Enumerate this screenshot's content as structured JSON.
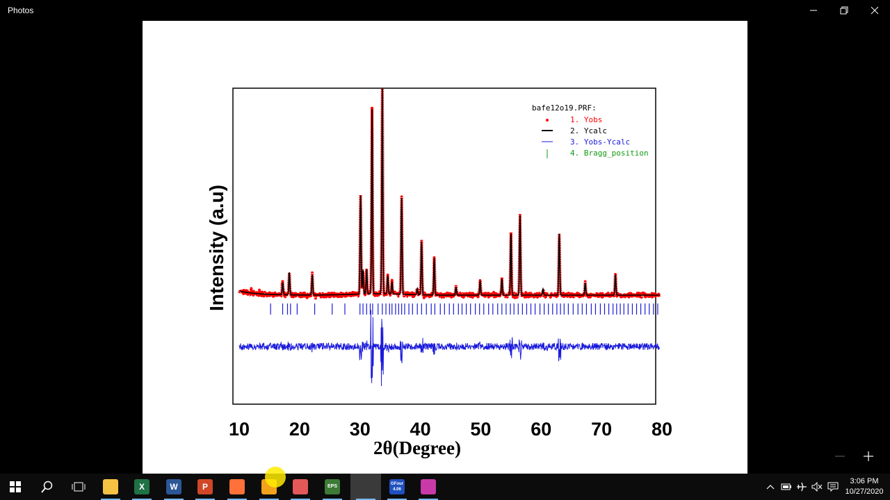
{
  "window": {
    "title": "Photos"
  },
  "chart_data": {
    "type": "line",
    "file_label": "bafe12o19.PRF:",
    "xlabel": "2θ(Degree)",
    "ylabel": "Intensity (a.u)",
    "xlim": [
      10,
      80
    ],
    "xticks": [
      "10",
      "20",
      "30",
      "40",
      "50",
      "60",
      "70",
      "80"
    ],
    "legend": [
      "1. Yobs",
      "2. Ycalc",
      "3. Yobs-Ycalc",
      "4. Bragg_position"
    ],
    "legend_placement": "top-right",
    "colors": {
      "yobs": "#ff0000",
      "ycalc": "#000000",
      "diff": "#1a1adc",
      "bragg": "#1a1adc",
      "legend_bragg": "#119911"
    },
    "peaks": [
      {
        "x": 17.2,
        "h": 0.06
      },
      {
        "x": 18.3,
        "h": 0.11
      },
      {
        "x": 22.1,
        "h": 0.1
      },
      {
        "x": 30.1,
        "h": 0.48
      },
      {
        "x": 30.5,
        "h": 0.12
      },
      {
        "x": 31.1,
        "h": 0.12
      },
      {
        "x": 32.0,
        "h": 0.9
      },
      {
        "x": 33.7,
        "h": 1.0
      },
      {
        "x": 34.6,
        "h": 0.09
      },
      {
        "x": 35.3,
        "h": 0.06
      },
      {
        "x": 36.9,
        "h": 0.47
      },
      {
        "x": 39.5,
        "h": 0.03
      },
      {
        "x": 40.2,
        "h": 0.26
      },
      {
        "x": 42.3,
        "h": 0.18
      },
      {
        "x": 45.9,
        "h": 0.04
      },
      {
        "x": 49.9,
        "h": 0.07
      },
      {
        "x": 53.5,
        "h": 0.08
      },
      {
        "x": 55.0,
        "h": 0.3
      },
      {
        "x": 56.5,
        "h": 0.39
      },
      {
        "x": 60.3,
        "h": 0.03
      },
      {
        "x": 63.0,
        "h": 0.3
      },
      {
        "x": 67.3,
        "h": 0.06
      },
      {
        "x": 72.3,
        "h": 0.1
      }
    ],
    "bragg_positions": [
      15.2,
      17.2,
      18.0,
      18.5,
      19.6,
      22.5,
      25.4,
      27.5,
      30.0,
      30.5,
      31.1,
      31.7,
      32.1,
      33.0,
      33.7,
      34.3,
      34.9,
      35.3,
      35.9,
      36.4,
      36.9,
      37.4,
      38.1,
      38.7,
      39.5,
      40.2,
      41.0,
      41.8,
      42.4,
      43.3,
      44.0,
      44.8,
      45.5,
      46.3,
      46.9,
      47.6,
      48.3,
      49.1,
      49.8,
      50.5,
      51.3,
      52.0,
      52.8,
      53.5,
      54.2,
      54.9,
      55.5,
      56.2,
      56.9,
      57.6,
      58.3,
      59.0,
      59.8,
      60.5,
      61.2,
      61.9,
      62.6,
      63.2,
      63.8,
      64.5,
      65.3,
      66.1,
      66.8,
      67.5,
      68.3,
      69.0,
      69.8,
      70.5,
      71.2,
      71.9,
      72.5,
      73.1,
      73.7,
      74.4,
      75.1,
      75.8,
      76.5,
      77.2,
      77.9,
      78.6,
      79.3
    ]
  },
  "taskbar": {
    "apps": [
      {
        "name": "file-explorer",
        "label": "",
        "color": "#f6c244"
      },
      {
        "name": "excel",
        "label": "X",
        "color": "#1f7244"
      },
      {
        "name": "word",
        "label": "W",
        "color": "#2b5797"
      },
      {
        "name": "powerpoint",
        "label": "P",
        "color": "#d04727"
      },
      {
        "name": "firefox",
        "label": "",
        "color": "#ff7139"
      },
      {
        "name": "orange-app",
        "label": "",
        "color": "#f3a21b"
      },
      {
        "name": "red-app",
        "label": "",
        "color": "#e35858"
      },
      {
        "name": "eps-toolkit",
        "label": "EPS",
        "color": "#3d7a36"
      },
      {
        "name": "photos",
        "label": "",
        "color": "#3a3a3a"
      },
      {
        "name": "gfour",
        "label": "GFour 4.06",
        "color": "#2050c0"
      },
      {
        "name": "fullprof",
        "label": "",
        "color": "#c73aa8"
      }
    ],
    "clock_time": "3:06 PM",
    "clock_date": "10/27/2020"
  }
}
